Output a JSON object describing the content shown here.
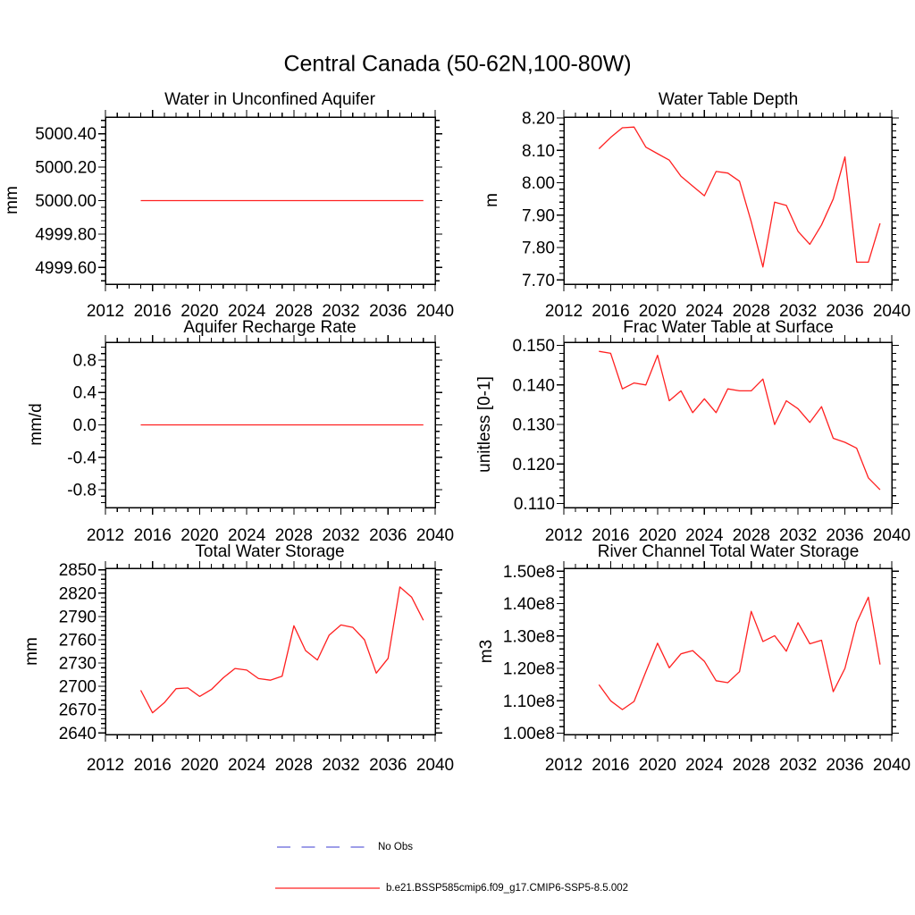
{
  "main_title": "Central Canada (50-62N,100-80W)",
  "legend": {
    "items": [
      {
        "label": "No Obs",
        "color": "#7d7de1",
        "style": "dashed"
      },
      {
        "label": "b.e21.BSSP585cmip6.f09_g17.CMIP6-SSP5-8.5.002",
        "color": "#ff2020",
        "style": "solid"
      }
    ]
  },
  "chart_data": [
    {
      "type": "line",
      "title": "Water in Unconfined Aquifer",
      "ylabel": "mm",
      "x": [
        2015,
        2016,
        2017,
        2018,
        2019,
        2020,
        2021,
        2022,
        2023,
        2024,
        2025,
        2026,
        2027,
        2028,
        2029,
        2030,
        2031,
        2032,
        2033,
        2034,
        2035,
        2036,
        2037,
        2038,
        2039
      ],
      "values": [
        5000.0,
        5000.0,
        5000.0,
        5000.0,
        5000.0,
        5000.0,
        5000.0,
        5000.0,
        5000.0,
        5000.0,
        5000.0,
        5000.0,
        5000.0,
        5000.0,
        5000.0,
        5000.0,
        5000.0,
        5000.0,
        5000.0,
        5000.0,
        5000.0,
        5000.0,
        5000.0,
        5000.0,
        5000.0
      ],
      "ylim": [
        4999.5,
        5000.5
      ],
      "yticks": [
        4999.6,
        4999.8,
        5000.0,
        5000.2,
        5000.4
      ],
      "ytick_labels": [
        "4999.60",
        "4999.80",
        "5000.00",
        "5000.20",
        "5000.40"
      ],
      "yminor_step": 0.04,
      "xlim": [
        2012,
        2040
      ],
      "xticks": [
        2012,
        2016,
        2020,
        2024,
        2028,
        2032,
        2036,
        2040
      ],
      "xtick_labels": [
        "2012",
        "2016",
        "2020",
        "2024",
        "2028",
        "2032",
        "2036",
        "2040"
      ],
      "xminor_step": 1,
      "line_color": "#ff2020"
    },
    {
      "type": "line",
      "title": "Water Table Depth",
      "ylabel": "m",
      "x": [
        2015,
        2016,
        2017,
        2018,
        2019,
        2020,
        2021,
        2022,
        2023,
        2024,
        2025,
        2026,
        2027,
        2028,
        2029,
        2030,
        2031,
        2032,
        2033,
        2034,
        2035,
        2036,
        2037,
        2038,
        2039
      ],
      "values": [
        8.105,
        8.14,
        8.17,
        8.172,
        8.11,
        8.09,
        8.07,
        8.02,
        7.99,
        7.96,
        8.035,
        8.03,
        8.005,
        7.88,
        7.74,
        7.94,
        7.93,
        7.85,
        7.81,
        7.87,
        7.95,
        8.08,
        7.755,
        7.755,
        7.875
      ],
      "ylim": [
        7.687,
        8.203
      ],
      "yticks": [
        7.7,
        7.8,
        7.9,
        8.0,
        8.1,
        8.2
      ],
      "ytick_labels": [
        "7.70",
        "7.80",
        "7.90",
        "8.00",
        "8.10",
        "8.20"
      ],
      "yminor_step": 0.02,
      "xlim": [
        2012,
        2040
      ],
      "xticks": [
        2012,
        2016,
        2020,
        2024,
        2028,
        2032,
        2036,
        2040
      ],
      "xtick_labels": [
        "2012",
        "2016",
        "2020",
        "2024",
        "2028",
        "2032",
        "2036",
        "2040"
      ],
      "xminor_step": 1,
      "line_color": "#ff2020"
    },
    {
      "type": "line",
      "title": "Aquifer Recharge Rate",
      "ylabel": "mm/d",
      "x": [
        2015,
        2016,
        2017,
        2018,
        2019,
        2020,
        2021,
        2022,
        2023,
        2024,
        2025,
        2026,
        2027,
        2028,
        2029,
        2030,
        2031,
        2032,
        2033,
        2034,
        2035,
        2036,
        2037,
        2038,
        2039
      ],
      "values": [
        0.0,
        0.0,
        0.0,
        0.0,
        0.0,
        0.0,
        0.0,
        0.0,
        0.0,
        0.0,
        0.0,
        0.0,
        0.0,
        0.0,
        0.0,
        0.0,
        0.0,
        0.0,
        0.0,
        0.0,
        0.0,
        0.0,
        0.0,
        0.0,
        0.0
      ],
      "ylim": [
        -1.02,
        1.02
      ],
      "yticks": [
        -0.8,
        -0.4,
        0.0,
        0.4,
        0.8
      ],
      "ytick_labels": [
        "-0.8",
        "-0.4",
        "0.0",
        "0.4",
        "0.8"
      ],
      "yminor_step": 0.08,
      "xlim": [
        2012,
        2040
      ],
      "xticks": [
        2012,
        2016,
        2020,
        2024,
        2028,
        2032,
        2036,
        2040
      ],
      "xtick_labels": [
        "2012",
        "2016",
        "2020",
        "2024",
        "2028",
        "2032",
        "2036",
        "2040"
      ],
      "xminor_step": 1,
      "line_color": "#ff2020"
    },
    {
      "type": "line",
      "title": "Frac Water Table at Surface",
      "ylabel": "unitless [0-1]",
      "x": [
        2015,
        2016,
        2017,
        2018,
        2019,
        2020,
        2021,
        2022,
        2023,
        2024,
        2025,
        2026,
        2027,
        2028,
        2029,
        2030,
        2031,
        2032,
        2033,
        2034,
        2035,
        2036,
        2037,
        2038,
        2039
      ],
      "values": [
        0.1485,
        0.148,
        0.139,
        0.1405,
        0.14,
        0.1475,
        0.136,
        0.1385,
        0.133,
        0.1365,
        0.133,
        0.139,
        0.1385,
        0.1385,
        0.1415,
        0.13,
        0.136,
        0.134,
        0.1305,
        0.1345,
        0.1265,
        0.1255,
        0.124,
        0.1165,
        0.1135
      ],
      "ylim": [
        0.109,
        0.1508
      ],
      "yticks": [
        0.11,
        0.12,
        0.13,
        0.14,
        0.15
      ],
      "ytick_labels": [
        "0.110",
        "0.120",
        "0.130",
        "0.140",
        "0.150"
      ],
      "yminor_step": 0.002,
      "xlim": [
        2012,
        2040
      ],
      "xticks": [
        2012,
        2016,
        2020,
        2024,
        2028,
        2032,
        2036,
        2040
      ],
      "xtick_labels": [
        "2012",
        "2016",
        "2020",
        "2024",
        "2028",
        "2032",
        "2036",
        "2040"
      ],
      "xminor_step": 1,
      "line_color": "#ff2020"
    },
    {
      "type": "line",
      "title": "Total Water Storage",
      "ylabel": "mm",
      "x": [
        2015,
        2016,
        2017,
        2018,
        2019,
        2020,
        2021,
        2022,
        2023,
        2024,
        2025,
        2026,
        2027,
        2028,
        2029,
        2030,
        2031,
        2032,
        2033,
        2034,
        2035,
        2036,
        2037,
        2038,
        2039
      ],
      "values": [
        2695,
        2666,
        2679,
        2697,
        2698,
        2687,
        2696,
        2711,
        2723,
        2721,
        2710,
        2708,
        2713,
        2778,
        2746,
        2734,
        2766,
        2779,
        2776,
        2760,
        2717,
        2736,
        2828,
        2815,
        2785
      ],
      "ylim": [
        2638,
        2852
      ],
      "yticks": [
        2640,
        2670,
        2700,
        2730,
        2760,
        2790,
        2820,
        2850
      ],
      "ytick_labels": [
        "2640",
        "2670",
        "2700",
        "2730",
        "2760",
        "2790",
        "2820",
        "2850"
      ],
      "yminor_step": 6,
      "xlim": [
        2012,
        2040
      ],
      "xticks": [
        2012,
        2016,
        2020,
        2024,
        2028,
        2032,
        2036,
        2040
      ],
      "xtick_labels": [
        "2012",
        "2016",
        "2020",
        "2024",
        "2028",
        "2032",
        "2036",
        "2040"
      ],
      "xminor_step": 1,
      "line_color": "#ff2020"
    },
    {
      "type": "line",
      "title": "River Channel Total Water Storage",
      "ylabel": "m3",
      "x": [
        2015,
        2016,
        2017,
        2018,
        2019,
        2020,
        2021,
        2022,
        2023,
        2024,
        2025,
        2026,
        2027,
        2028,
        2029,
        2030,
        2031,
        2032,
        2033,
        2034,
        2035,
        2036,
        2037,
        2038,
        2039
      ],
      "values": [
        115000000,
        110000000,
        107300000,
        109800000,
        119000000,
        127800000,
        120200000,
        124500000,
        125500000,
        122200000,
        116200000,
        115600000,
        119000000,
        137600000,
        128300000,
        130100000,
        125300000,
        134100000,
        127600000,
        128700000,
        112800000,
        120000000,
        134100000,
        142000000,
        121200000
      ],
      "ylim": [
        99600000,
        150900000
      ],
      "yticks": [
        100000000,
        110000000,
        120000000,
        130000000,
        140000000,
        150000000
      ],
      "ytick_labels": [
        "1.00e8",
        "1.10e8",
        "1.20e8",
        "1.30e8",
        "1.40e8",
        "1.50e8"
      ],
      "yminor_step": 2000000,
      "xlim": [
        2012,
        2040
      ],
      "xticks": [
        2012,
        2016,
        2020,
        2024,
        2028,
        2032,
        2036,
        2040
      ],
      "xtick_labels": [
        "2012",
        "2016",
        "2020",
        "2024",
        "2028",
        "2032",
        "2036",
        "2040"
      ],
      "xminor_step": 1,
      "line_color": "#ff2020"
    }
  ]
}
